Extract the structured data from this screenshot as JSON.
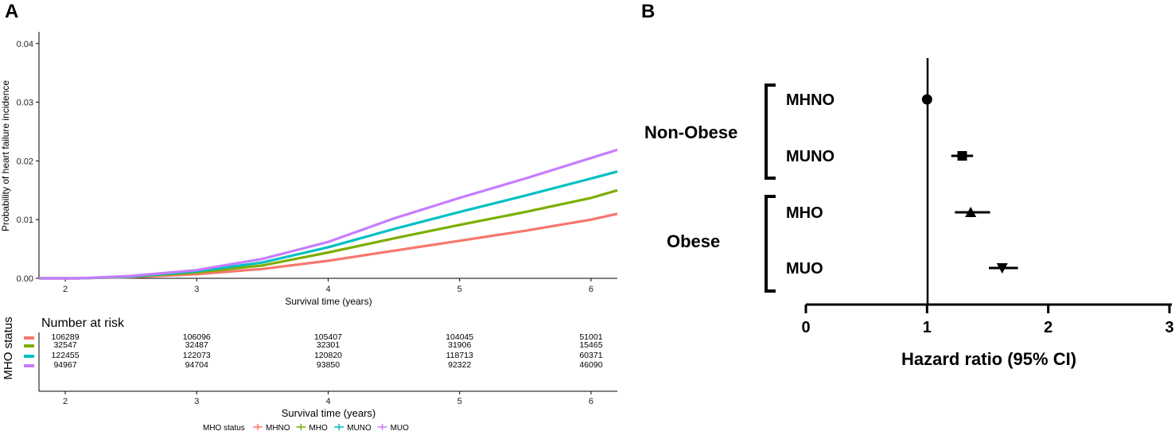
{
  "panels": {
    "a": "A",
    "b": "B"
  },
  "chart_data": [
    {
      "type": "line",
      "panel": "A",
      "xlabel": "Survival time (years)",
      "ylabel": "Probability of heart failure incidence",
      "xlim": [
        1.8,
        6.2
      ],
      "ylim": [
        0,
        0.042
      ],
      "xticks": [
        2,
        3,
        4,
        5,
        6
      ],
      "yticks": [
        0.0,
        0.01,
        0.02,
        0.03,
        0.04
      ],
      "ytick_labels": [
        "0.00",
        "0.01",
        "0.02",
        "0.03",
        "0.04"
      ],
      "x": [
        1.8,
        2.1,
        2.5,
        3.0,
        3.5,
        4.0,
        4.5,
        5.0,
        5.5,
        6.0,
        6.2
      ],
      "series": [
        {
          "name": "MHNO",
          "color": "#F8766D",
          "values": [
            0,
            0,
            0.0002,
            0.0007,
            0.0016,
            0.003,
            0.0047,
            0.0064,
            0.0081,
            0.01,
            0.011
          ]
        },
        {
          "name": "MHO",
          "color": "#7CAE00",
          "values": [
            0,
            0,
            0.0003,
            0.001,
            0.0022,
            0.0044,
            0.0068,
            0.0091,
            0.0113,
            0.0137,
            0.015
          ]
        },
        {
          "name": "MUNO",
          "color": "#00BFC4",
          "values": [
            0,
            0,
            0.0003,
            0.0012,
            0.0027,
            0.0053,
            0.0084,
            0.0113,
            0.0141,
            0.017,
            0.0182
          ]
        },
        {
          "name": "MUO",
          "color": "#C77CFF",
          "values": [
            0,
            0,
            0.0004,
            0.0014,
            0.0033,
            0.0062,
            0.0102,
            0.0137,
            0.017,
            0.0205,
            0.0219
          ]
        }
      ],
      "risk_table": {
        "title": "Number at risk",
        "ylabel": "MHO status",
        "xlabel": "Survival time (years)",
        "xticks": [
          "2",
          "3",
          "4",
          "5",
          "6"
        ],
        "rows": [
          {
            "name": "MHNO",
            "color": "#F8766D",
            "values": [
              "106289",
              "106096",
              "105407",
              "104045",
              "51001"
            ]
          },
          {
            "name": "MHO",
            "color": "#7CAE00",
            "values": [
              "32547",
              "32487",
              "32301",
              "31906",
              "15465"
            ]
          },
          {
            "name": "MUNO",
            "color": "#00BFC4",
            "values": [
              "122455",
              "122073",
              "120820",
              "118713",
              "60371"
            ]
          },
          {
            "name": "MUO",
            "color": "#C77CFF",
            "values": [
              "94967",
              "94704",
              "93850",
              "92322",
              "46090"
            ]
          }
        ]
      },
      "legend": {
        "title": "MHO status",
        "items": [
          {
            "label": "MHNO",
            "color": "#F8766D"
          },
          {
            "label": "MHO",
            "color": "#7CAE00"
          },
          {
            "label": "MUNO",
            "color": "#00BFC4"
          },
          {
            "label": "MUO",
            "color": "#C77CFF"
          }
        ]
      }
    },
    {
      "type": "forest",
      "panel": "B",
      "xlabel": "Hazard ratio (95% CI)",
      "xlim": [
        0,
        3
      ],
      "xticks": [
        "0",
        "1",
        "2",
        "3"
      ],
      "reference_line": 1,
      "groups": [
        {
          "label": "Non-Obese",
          "members": [
            "MHNO",
            "MUNO"
          ]
        },
        {
          "label": "Obese",
          "members": [
            "MHO",
            "MUO"
          ]
        }
      ],
      "rows": [
        {
          "label": "MHNO",
          "hr": 1.0,
          "lo": 1.0,
          "hi": 1.0,
          "marker": "circle"
        },
        {
          "label": "MUNO",
          "hr": 1.29,
          "lo": 1.2,
          "hi": 1.38,
          "marker": "square"
        },
        {
          "label": "MHO",
          "hr": 1.36,
          "lo": 1.23,
          "hi": 1.52,
          "marker": "triangle-up"
        },
        {
          "label": "MUO",
          "hr": 1.62,
          "lo": 1.51,
          "hi": 1.75,
          "marker": "triangle-down"
        }
      ]
    }
  ]
}
